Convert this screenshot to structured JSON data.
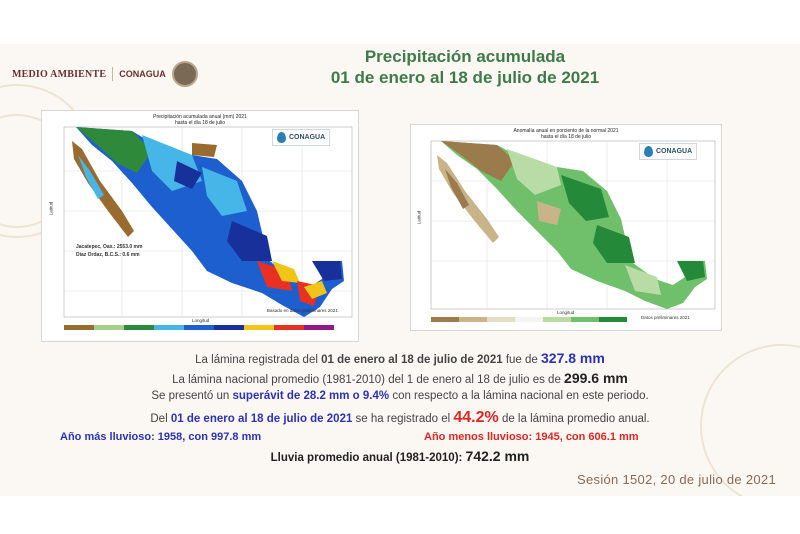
{
  "header": {
    "logo_medio_ambiente": "MEDIO AMBIENTE",
    "logo_conagua": "CONAGUA",
    "title_line1": "Precipitación acumulada",
    "title_line2": "01 de enero al 18 de julio de 2021"
  },
  "left_map": {
    "caption_line1": "Precipitación acumulada anual (mm) 2021",
    "caption_line2": "hasta el día 18 de julio",
    "badge": "CONAGUA",
    "lat_label": "Latitud",
    "lon_label": "Longitud",
    "note_max": "Jacatepec, Oax.: 2553.0 mm",
    "note_min": "Diaz Ordaz, B.C.S.: 0.6 mm",
    "base_note": "Basado en datos preliminares 2021",
    "colors": {
      "dry": "#9a6b2e",
      "light": "#a8ce8e",
      "green": "#2e8a3a",
      "cyan": "#46b6e8",
      "blue": "#1e5fd0",
      "navy": "#17309a",
      "yellow": "#f0c419",
      "red": "#e83023"
    }
  },
  "right_map": {
    "caption_line1": "Anomalía anual en porciento de la normal 2021",
    "caption_line2": "hasta el día 18 de julio",
    "badge": "CONAGUA",
    "lat_label": "Latitud",
    "lon_label": "Longitud",
    "base_note": "Datos preliminares 2021",
    "colors": {
      "brown": "#9b7a4c",
      "tan": "#c9b48a",
      "light": "#b9dba5",
      "mid": "#6fbf6b",
      "dark": "#248a3a"
    }
  },
  "info": {
    "line1_a": "La lámina registrada del ",
    "line1_b": "01 de enero al 18 de julio de 2021",
    "line1_c": " fue de ",
    "line1_val": "327.8 mm",
    "line2_a": "La lámina nacional promedio (1981-2010) del 1 de enero al 18 de julio es de ",
    "line2_val": "299.6 mm",
    "line3_a": "Se presentó un ",
    "line3_b": "superávit de 28.2 mm o 9.4%",
    "line3_c": " con respecto a la lámina nacional en este periodo.",
    "line4_a": "Del ",
    "line4_b": "01 de enero al 18 de julio de 2021",
    "line4_c": " se ha registrado el ",
    "line4_val": "44.2%",
    "line4_d": " de la lámina promedio anual.",
    "wettest": "Año más lluvioso: 1958, con 997.8 mm",
    "driest": "Año menos lluvioso: 1945, con 606.1 mm",
    "avg_label": "Lluvia promedio anual (1981-2010): ",
    "avg_val": "742.2 mm"
  },
  "footer": {
    "session": "Sesión 1502, 20 de julio de 2021"
  }
}
